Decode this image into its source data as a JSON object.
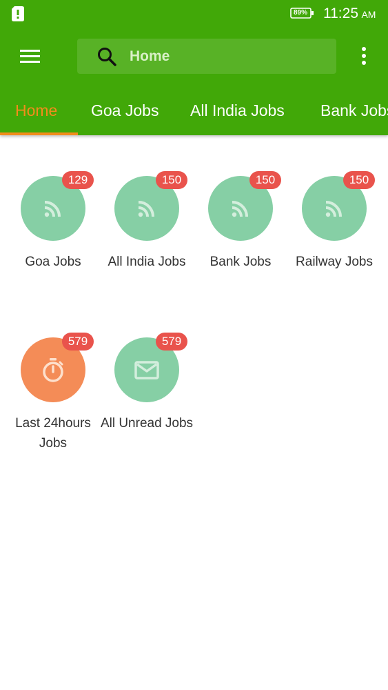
{
  "status_bar": {
    "battery": "89%",
    "time": "11:25",
    "ampm": "AM"
  },
  "toolbar": {
    "search_value": "Home",
    "menu_icon": "hamburger-menu-icon",
    "search_icon": "search-icon",
    "overflow_icon": "more-vert-icon"
  },
  "tabs": [
    {
      "label": "Home",
      "active": true
    },
    {
      "label": "Goa Jobs",
      "active": false
    },
    {
      "label": "All India Jobs",
      "active": false
    },
    {
      "label": "Bank Jobs",
      "active": false
    }
  ],
  "tiles": [
    {
      "label": "Goa Jobs",
      "badge": "129",
      "icon": "rss-feed-icon",
      "color": "#86cfa5"
    },
    {
      "label": "All India Jobs",
      "badge": "150",
      "icon": "rss-feed-icon",
      "color": "#86cfa5"
    },
    {
      "label": "Bank Jobs",
      "badge": "150",
      "icon": "rss-feed-icon",
      "color": "#86cfa5"
    },
    {
      "label": "Railway Jobs",
      "badge": "150",
      "icon": "rss-feed-icon",
      "color": "#86cfa5"
    },
    {
      "label": "Last 24hours Jobs",
      "badge": "579",
      "icon": "timer-icon",
      "color": "#f48c57"
    },
    {
      "label": "All Unread Jobs",
      "badge": "579",
      "icon": "mail-icon",
      "color": "#86cfa5"
    }
  ],
  "colors": {
    "primary": "#41a808",
    "accent": "#f28c1c",
    "badge": "#e9534c"
  }
}
